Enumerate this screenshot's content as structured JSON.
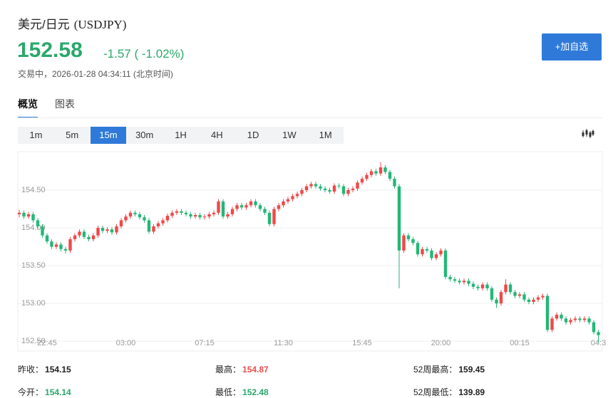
{
  "header": {
    "title": "美元/日元",
    "code": "(USDJPY)",
    "price": "152.58",
    "change": "-1.57 ( -1.02%)",
    "status": "交易中，2026-01-28 04:34:11 (北京时间)"
  },
  "button": "+加自选",
  "tabs": [
    "概览",
    "图表"
  ],
  "intervals": [
    "1m",
    "5m",
    "15m",
    "30m",
    "1H",
    "4H",
    "1D",
    "1W",
    "1M"
  ],
  "chart_data": {
    "type": "candlestick",
    "categories": [
      null,
      null,
      null,
      null,
      null,
      null,
      "22:45",
      null,
      null,
      null,
      null,
      null,
      null,
      null,
      null,
      null,
      null,
      null,
      null,
      null,
      null,
      null,
      null,
      "03:00",
      null,
      null,
      null,
      null,
      null,
      null,
      null,
      null,
      null,
      null,
      null,
      null,
      null,
      null,
      null,
      null,
      "07:15",
      null,
      null,
      null,
      null,
      null,
      null,
      null,
      null,
      null,
      null,
      null,
      null,
      null,
      null,
      null,
      null,
      "11:30",
      null,
      null,
      null,
      null,
      null,
      null,
      null,
      null,
      null,
      null,
      null,
      null,
      null,
      null,
      null,
      null,
      "15:45",
      null,
      null,
      null,
      null,
      null,
      null,
      null,
      null,
      null,
      null,
      null,
      null,
      null,
      null,
      null,
      null,
      "20:00",
      null,
      null,
      null,
      null,
      null,
      null,
      null,
      null,
      null,
      null,
      null,
      null,
      null,
      null,
      null,
      null,
      "00:15",
      null,
      null,
      null,
      null,
      null,
      null,
      null,
      null,
      null,
      null,
      null,
      null,
      null,
      null,
      null,
      null,
      "04:3"
    ],
    "open": [
      154.18,
      154.2,
      154.15,
      154.18,
      154.1,
      154.02,
      153.9,
      153.82,
      153.75,
      153.78,
      153.72,
      153.7,
      153.85,
      153.9,
      153.95,
      153.88,
      153.85,
      153.9,
      154.0,
      153.96,
      153.98,
      153.94,
      154.02,
      154.1,
      154.15,
      154.2,
      154.18,
      154.14,
      154.1,
      153.95,
      154.02,
      154.06,
      154.1,
      154.16,
      154.2,
      154.22,
      154.2,
      154.18,
      154.15,
      154.17,
      154.14,
      154.15,
      154.18,
      154.2,
      154.35,
      154.15,
      154.18,
      154.25,
      154.3,
      154.27,
      154.3,
      154.35,
      154.3,
      154.25,
      154.2,
      154.05,
      154.25,
      154.3,
      154.35,
      154.38,
      154.42,
      154.45,
      154.5,
      154.55,
      154.58,
      154.55,
      154.52,
      154.5,
      154.48,
      154.56,
      154.55,
      154.45,
      154.5,
      154.52,
      154.6,
      154.65,
      154.7,
      154.75,
      154.72,
      154.8,
      154.74,
      154.65,
      154.55,
      153.7,
      153.9,
      153.85,
      153.8,
      153.65,
      153.72,
      153.7,
      153.6,
      153.65,
      153.7,
      153.35,
      153.32,
      153.3,
      153.28,
      153.3,
      153.26,
      153.22,
      153.2,
      153.25,
      153.2,
      153.05,
      153.0,
      153.15,
      153.25,
      153.15,
      153.1,
      153.12,
      153.05,
      153.02,
      153.05,
      153.08,
      153.1,
      152.65,
      152.8,
      152.85,
      152.8,
      152.75,
      152.78,
      152.8,
      152.78,
      152.8,
      152.75,
      152.62
    ],
    "high": [
      154.24,
      154.23,
      154.21,
      154.21,
      154.13,
      154.05,
      153.93,
      153.85,
      153.81,
      153.81,
      153.75,
      153.88,
      153.93,
      153.98,
      153.98,
      153.91,
      153.93,
      154.03,
      154.03,
      154.01,
      154.01,
      154.05,
      154.13,
      154.18,
      154.23,
      154.23,
      154.21,
      154.17,
      154.13,
      154.05,
      154.09,
      154.13,
      154.19,
      154.23,
      154.25,
      154.25,
      154.23,
      154.21,
      154.2,
      154.2,
      154.18,
      154.21,
      154.23,
      154.38,
      154.38,
      154.21,
      154.28,
      154.33,
      154.33,
      154.33,
      154.38,
      154.38,
      154.33,
      154.28,
      154.23,
      154.28,
      154.33,
      154.38,
      154.41,
      154.45,
      154.48,
      154.53,
      154.58,
      154.61,
      154.61,
      154.58,
      154.55,
      154.53,
      154.59,
      154.59,
      154.58,
      154.53,
      154.55,
      154.63,
      154.68,
      154.73,
      154.78,
      154.78,
      154.87,
      154.83,
      154.77,
      154.68,
      154.58,
      153.93,
      153.93,
      153.88,
      153.83,
      153.75,
      153.75,
      153.73,
      153.68,
      153.73,
      153.73,
      153.38,
      153.35,
      153.33,
      153.33,
      153.33,
      153.29,
      153.25,
      153.28,
      153.28,
      153.23,
      153.08,
      153.18,
      153.32,
      153.28,
      153.18,
      153.15,
      153.15,
      153.08,
      153.08,
      153.11,
      153.13,
      153.13,
      152.83,
      152.88,
      152.88,
      152.83,
      152.81,
      152.83,
      152.83,
      152.83,
      152.83,
      152.78,
      152.65
    ],
    "low": [
      154.14,
      154.12,
      154.12,
      154.07,
      153.99,
      153.87,
      153.79,
      153.72,
      153.72,
      153.69,
      153.66,
      153.67,
      153.82,
      153.87,
      153.85,
      153.82,
      153.82,
      153.87,
      153.93,
      153.93,
      153.91,
      153.91,
      153.99,
      154.07,
      154.12,
      154.15,
      154.11,
      154.07,
      153.92,
      153.92,
      153.99,
      154.03,
      154.07,
      154.13,
      154.17,
      154.17,
      154.15,
      154.12,
      154.12,
      154.11,
      154.11,
      154.12,
      154.15,
      154.17,
      154.12,
      154.12,
      154.15,
      154.22,
      154.24,
      154.24,
      154.27,
      154.27,
      154.22,
      154.17,
      154.02,
      154.02,
      154.22,
      154.27,
      154.32,
      154.35,
      154.39,
      154.42,
      154.47,
      154.52,
      154.52,
      154.49,
      154.47,
      154.45,
      154.45,
      154.52,
      154.42,
      154.42,
      154.47,
      154.49,
      154.57,
      154.62,
      154.67,
      154.69,
      154.69,
      154.71,
      154.62,
      154.52,
      153.2,
      153.67,
      153.82,
      153.77,
      153.62,
      153.62,
      153.67,
      153.57,
      153.57,
      153.62,
      153.32,
      153.29,
      153.27,
      153.25,
      153.25,
      153.23,
      153.19,
      153.17,
      153.17,
      153.17,
      153.02,
      152.94,
      152.97,
      153.12,
      153.12,
      153.07,
      153.07,
      153.02,
      152.99,
      152.99,
      153.02,
      153.05,
      152.62,
      152.62,
      152.77,
      152.77,
      152.72,
      152.72,
      152.75,
      152.75,
      152.75,
      152.72,
      152.59,
      152.48
    ],
    "close": [
      154.2,
      154.15,
      154.18,
      154.1,
      154.02,
      153.9,
      153.82,
      153.75,
      153.78,
      153.72,
      153.7,
      153.85,
      153.9,
      153.95,
      153.88,
      153.85,
      153.9,
      154.0,
      153.96,
      153.98,
      153.94,
      154.02,
      154.1,
      154.15,
      154.2,
      154.18,
      154.14,
      154.1,
      153.95,
      154.02,
      154.06,
      154.1,
      154.16,
      154.2,
      154.22,
      154.2,
      154.18,
      154.15,
      154.17,
      154.14,
      154.15,
      154.18,
      154.2,
      154.35,
      154.15,
      154.18,
      154.25,
      154.3,
      154.27,
      154.3,
      154.35,
      154.3,
      154.25,
      154.2,
      154.05,
      154.25,
      154.3,
      154.35,
      154.38,
      154.42,
      154.45,
      154.5,
      154.55,
      154.58,
      154.55,
      154.52,
      154.5,
      154.48,
      154.56,
      154.55,
      154.45,
      154.5,
      154.52,
      154.6,
      154.65,
      154.7,
      154.75,
      154.72,
      154.8,
      154.74,
      154.65,
      154.55,
      153.7,
      153.9,
      153.85,
      153.8,
      153.65,
      153.72,
      153.7,
      153.6,
      153.65,
      153.7,
      153.35,
      153.32,
      153.3,
      153.28,
      153.3,
      153.26,
      153.22,
      153.2,
      153.25,
      153.2,
      153.05,
      153.0,
      153.15,
      153.25,
      153.15,
      153.1,
      153.12,
      153.05,
      153.02,
      153.05,
      153.08,
      153.1,
      152.65,
      152.8,
      152.85,
      152.8,
      152.75,
      152.78,
      152.8,
      152.78,
      152.8,
      152.75,
      152.62,
      152.58
    ],
    "up_color": "#f04848",
    "down_color": "#23b777",
    "ylim": [
      152.37,
      154.99
    ],
    "yticks": [
      {
        "value": 152.5,
        "label": "152.50"
      },
      {
        "value": 153,
        "label": "153.00"
      },
      {
        "value": 153.5,
        "label": "153.50"
      },
      {
        "value": 154,
        "label": "154.00"
      },
      {
        "value": 154.5,
        "label": "154.50"
      }
    ],
    "grid": true
  },
  "stats": [
    [
      {
        "label": "昨收：",
        "value": "154.15"
      },
      {
        "label": "最高：",
        "value": "154.87"
      },
      {
        "label": "52周最高：",
        "value": "159.45"
      }
    ],
    [
      {
        "label": "今开：",
        "value": "154.14"
      },
      {
        "label": "最低：",
        "value": "152.48"
      },
      {
        "label": "52周最低：",
        "value": "139.89"
      }
    ]
  ]
}
